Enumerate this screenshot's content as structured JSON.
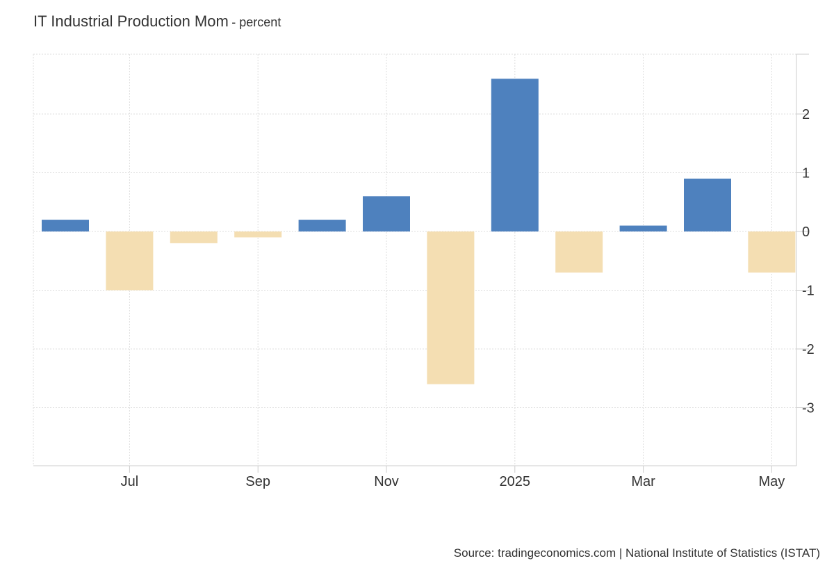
{
  "chart_data": {
    "type": "bar",
    "title": "IT Industrial Production Mom",
    "subtitle": "- percent",
    "source": "Source: tradingeconomics.com | National Institute of Statistics (ISTAT)",
    "categories": [
      "2024-06",
      "2024-07",
      "2024-08",
      "2024-09",
      "2024-10",
      "2024-11",
      "2024-12",
      "2025-01",
      "2025-02",
      "2025-03",
      "2025-04",
      "2025-05"
    ],
    "values": [
      0.2,
      -1.0,
      -0.2,
      -0.1,
      0.2,
      0.6,
      -2.6,
      2.6,
      -0.7,
      0.1,
      0.9,
      -0.7
    ],
    "x_ticks": [
      "Jul",
      "Sep",
      "Nov",
      "2025",
      "Mar",
      "May"
    ],
    "x_tick_categories": [
      "2024-07",
      "2024-09",
      "2024-11",
      "2025-01",
      "2025-03",
      "2025-05"
    ],
    "y_ticks": [
      2,
      1,
      0,
      -1,
      -2,
      -3
    ],
    "ylim": [
      -4,
      3
    ],
    "y_axis_side": "right",
    "grid": true,
    "colors": {
      "positive": "#4e81be",
      "negative": "#f4deb2",
      "grid": "#dddddd",
      "axis": "#cccccc",
      "text": "#333333"
    }
  }
}
